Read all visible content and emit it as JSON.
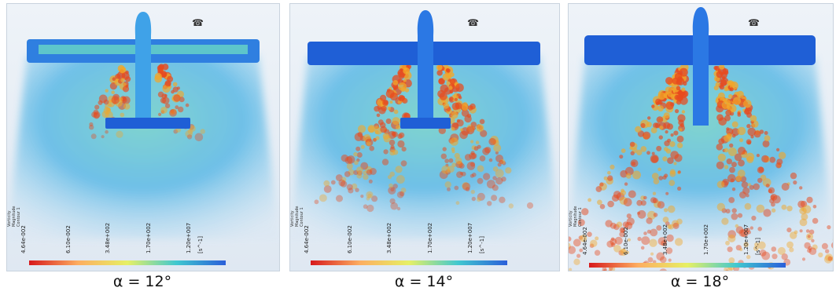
{
  "panels": [
    {
      "caption": "α = 12°",
      "scale_label_lines": [
        "Vorticity",
        "Magnitude",
        "Contour 1"
      ],
      "scale_ticks": [
        "4.64e-002",
        "6.10e-002",
        "3.48e+002",
        "1.70e+002",
        "1.20e+007"
      ],
      "unit": "[s^-1]",
      "wake_level": 0.15
    },
    {
      "caption": "α = 14°",
      "scale_label_lines": [
        "Vorticity",
        "Magnitude",
        "Contour 1"
      ],
      "scale_ticks": [
        "4.64e-002",
        "6.10e-002",
        "3.48e+002",
        "1.70e+002",
        "1.20e+007"
      ],
      "unit": "[s^-1]",
      "wake_level": 0.55
    },
    {
      "caption": "α = 18°",
      "scale_label_lines": [
        "Vorticity",
        "Magnitude",
        "Contour 1"
      ],
      "scale_ticks": [
        "4.64e-002",
        "6.10e-002",
        "3.48e+002",
        "1.70e+002",
        "1.20e+007"
      ],
      "unit": "[s^-1]",
      "wake_level": 1.0
    }
  ],
  "colors": {
    "background": "#e3ecf5",
    "flow_field": "#7fc3e8",
    "airframe": "#1f5fd6",
    "vortex_core": "#e84a1e",
    "vortex_edge": "#f2a629"
  }
}
